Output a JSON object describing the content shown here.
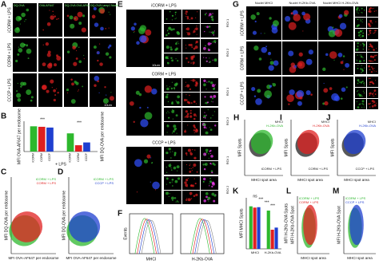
{
  "panels": {
    "A": {
      "letter": "A",
      "columns": [
        "DQ-OVA",
        "OVA-AF647",
        "DQ-OVA OVA-AF647",
        "DQ-OVA Lamp1 Nuclei"
      ],
      "rows": [
        "iCORM + LPS",
        "CORM + LPS",
        "CCCP + LPS"
      ],
      "scale": "10um"
    },
    "B": {
      "letter": "B",
      "ylabel": "MFI OVA-AF647 per endosome",
      "y2label": "MFI DQ-OVA per endosome",
      "xlabel": "+ LPS",
      "significance": [
        "***",
        "***"
      ],
      "ylim": [
        0,
        1.2
      ],
      "series": [
        {
          "name": "iCORM",
          "color": "#2db82d",
          "values": [
            1.0,
            0.72
          ]
        },
        {
          "name": "CORM",
          "color": "#e02020",
          "values": [
            0.98,
            0.25
          ]
        },
        {
          "name": "CCCP",
          "color": "#1f3fd0",
          "values": [
            0.95,
            0.36
          ]
        }
      ]
    },
    "C": {
      "letter": "C",
      "xlabel": "MFI OVA-AF647 per endosome",
      "ylabel": "MFI DQ-OVA per endosome",
      "legend": [
        {
          "name": "iCORM + LPS",
          "color": "#2db82d"
        },
        {
          "name": "CORM + LPS",
          "color": "#e02020"
        }
      ]
    },
    "D": {
      "letter": "D",
      "xlabel": "MFI OVA-AF647 per endosome",
      "ylabel": "MFI DQ-OVA per endosome",
      "legend": [
        {
          "name": "iCORM + LPS",
          "color": "#2db82d"
        },
        {
          "name": "CCCP + LPS",
          "color": "#1f3fd0"
        }
      ]
    },
    "E": {
      "letter": "E",
      "groups": [
        {
          "title": "iCORM + LPS",
          "rois": [
            "ROI 1",
            "ROI 2"
          ]
        },
        {
          "title": "CORM + LPS",
          "rois": [
            "ROI 1",
            "ROI 2"
          ]
        },
        {
          "title": "CCCP + LPS",
          "rois": [
            "ROI 1",
            "ROI 2"
          ]
        }
      ],
      "scale": "10um"
    },
    "F": {
      "letter": "F",
      "ylabel": "Events",
      "plots": [
        "MHCI",
        "H-2Kb-OVA"
      ]
    },
    "G": {
      "letter": "G",
      "headers": [
        "Nuclei MHCI",
        "Nuclei H-2Kb-OVA",
        "Nuclei MHCI H-2Kb-OVA"
      ],
      "rows": [
        "iCORM + LPS",
        "CORM + LPS",
        "CCCP + LPS"
      ]
    },
    "H": {
      "letter": "H",
      "ylabel": "MFI Spots",
      "xlabel": "MHCI spot area",
      "legend": [
        {
          "name": "MHCI",
          "color": "#222222"
        },
        {
          "name": "H-2Kb-OVA",
          "color": "#2db82d"
        }
      ],
      "label": "iCORM + LPS"
    },
    "I": {
      "letter": "I",
      "ylabel": "MFI Spots",
      "xlabel": "MHCI spot area",
      "legend": [
        {
          "name": "MHCI",
          "color": "#222222"
        },
        {
          "name": "H-2Kb-OVA",
          "color": "#e02020"
        }
      ],
      "label": "CORM + LPS"
    },
    "J": {
      "letter": "J",
      "ylabel": "MFI Spots",
      "xlabel": "MHCI spot area",
      "legend": [
        {
          "name": "MHCI",
          "color": "#222222"
        },
        {
          "name": "H-2Kb-OVA",
          "color": "#1f3fd0"
        }
      ],
      "label": "CCCP + LPS"
    },
    "K": {
      "letter": "K",
      "ylabel": "MFI MHCI Spots",
      "y2label": "MFI H-2Kb-OVA Spots",
      "categories": [
        "MHCI",
        "H-2Kb-OVA"
      ],
      "significance": [
        "ns",
        "***",
        "***",
        "***"
      ],
      "ylim": [
        0,
        1.2
      ],
      "series": [
        {
          "name": "iCORM",
          "color": "#2db82d",
          "values": [
            1.0,
            0.9
          ]
        },
        {
          "name": "CORM",
          "color": "#e02020",
          "values": [
            0.97,
            0.45
          ]
        },
        {
          "name": "CCCP",
          "color": "#1f3fd0",
          "values": [
            0.98,
            0.5
          ]
        }
      ]
    },
    "L": {
      "letter": "L",
      "ylabel": "MFI H-2Kb-OVA Spot",
      "xlabel": "MHCI spot area",
      "legend": [
        {
          "name": "iCORM + LPS",
          "color": "#2db82d"
        },
        {
          "name": "CORM + LPS",
          "color": "#e02020"
        }
      ]
    },
    "M": {
      "letter": "M",
      "ylabel": "MFI H-2Kb-OVA Spot",
      "xlabel": "MHCI spot area",
      "legend": [
        {
          "name": "iCORM + LPS",
          "color": "#2db82d"
        },
        {
          "name": "CCCP + LPS",
          "color": "#1f3fd0"
        }
      ]
    }
  }
}
